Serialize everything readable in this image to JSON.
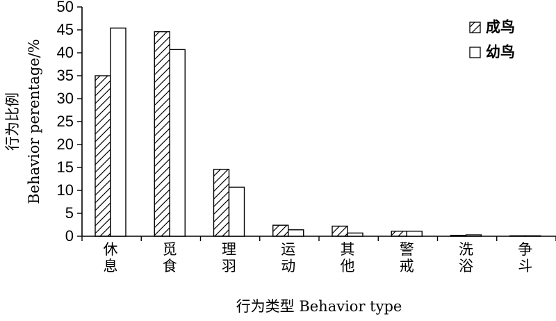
{
  "chart_data": {
    "type": "bar",
    "title": "",
    "xlabel": "行为类型 Behavior type",
    "ylabel_cn": "行为比例",
    "ylabel_en": "Behavior perentage/%",
    "ylim": [
      0,
      50
    ],
    "yticks": [
      0,
      5,
      10,
      15,
      20,
      25,
      30,
      35,
      40,
      45,
      50
    ],
    "grid": false,
    "legend_position": "top-right",
    "categories": [
      "休息",
      "觅食",
      "理羽",
      "运动",
      "其他",
      "警戒",
      "洗浴",
      "争斗"
    ],
    "series": [
      {
        "name": "成鸟",
        "pattern": "diagonal-hatch",
        "values": [
          35.0,
          44.6,
          14.6,
          2.4,
          2.2,
          1.1,
          0.2,
          0.1
        ]
      },
      {
        "name": "幼鸟",
        "pattern": "none",
        "values": [
          45.4,
          40.7,
          10.7,
          1.4,
          0.7,
          1.1,
          0.3,
          0.1
        ]
      }
    ],
    "colors": {
      "bar_fill": "#ffffff",
      "stroke": "#000000"
    }
  }
}
